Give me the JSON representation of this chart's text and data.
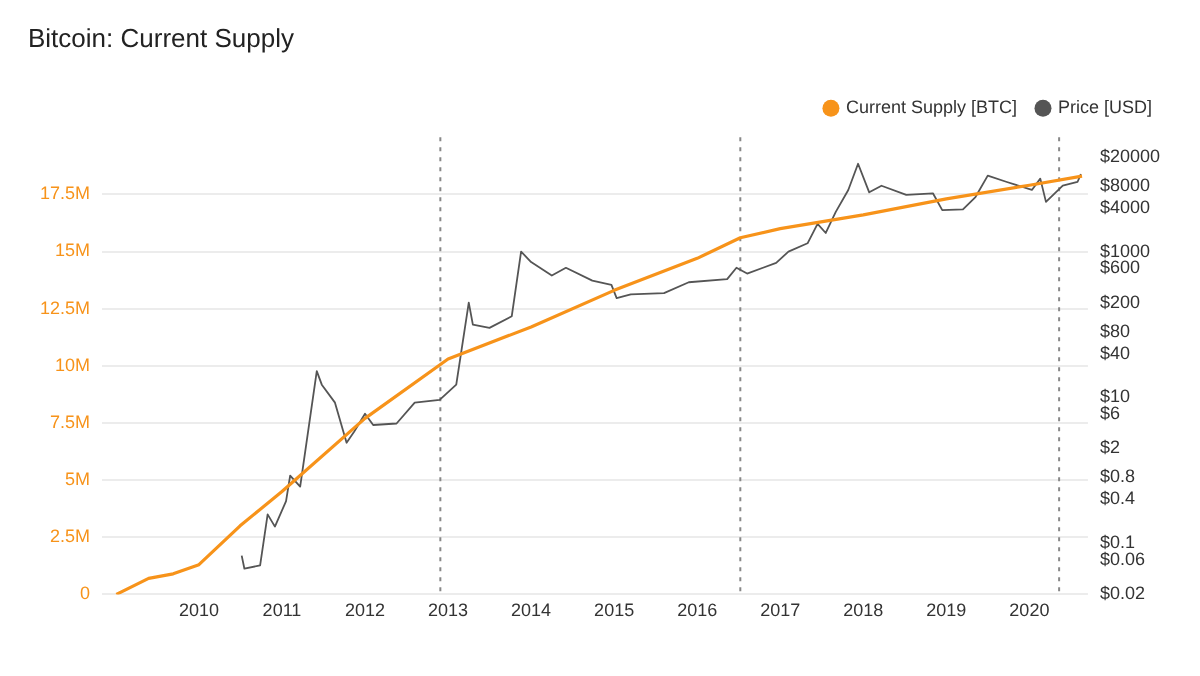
{
  "chart_data": {
    "type": "line",
    "title": "Bitcoin: Current Supply",
    "legend": "top right",
    "grid": "y",
    "log": "y2",
    "marker": "none",
    "xlim": [
      "2008-11-01",
      "2020-09-15"
    ],
    "xticks": [
      "2010",
      "2011",
      "2012",
      "2013",
      "2014",
      "2015",
      "2016",
      "2017",
      "2018",
      "2019",
      "2020"
    ],
    "ylim": [
      0,
      20000000
    ],
    "yticks": [
      0,
      {
        "value": 2500000,
        "label": "2.5M"
      },
      {
        "value": 5000000,
        "label": "5M"
      },
      {
        "value": 7500000,
        "label": "7.5M"
      },
      {
        "value": 10000000,
        "label": "10M"
      },
      {
        "value": 12500000,
        "label": "12.5M"
      },
      {
        "value": 15000000,
        "label": "15M"
      },
      {
        "value": 17500000,
        "label": "17.5M"
      }
    ],
    "y2lim": [
      0.02,
      37000
    ],
    "y2ticks": [
      {
        "value": 0.02,
        "label": "$0.02"
      },
      {
        "value": 0.06,
        "label": "$0.06"
      },
      {
        "value": 0.1,
        "label": "$0.1"
      },
      {
        "value": 0.4,
        "label": "$0.4"
      },
      {
        "value": 0.8,
        "label": "$0.8"
      },
      {
        "value": 2,
        "label": "$2"
      },
      {
        "value": 6,
        "label": "$6"
      },
      {
        "value": 10,
        "label": "$10"
      },
      {
        "value": 40,
        "label": "$40"
      },
      {
        "value": 80,
        "label": "$80"
      },
      {
        "value": 200,
        "label": "$200"
      },
      {
        "value": 600,
        "label": "$600"
      },
      {
        "value": 1000,
        "label": "$1000"
      },
      {
        "value": 4000,
        "label": "$4000"
      },
      {
        "value": 8000,
        "label": "$8000"
      },
      {
        "value": 20000,
        "label": "$20000"
      }
    ],
    "ref_lines": [
      {
        "axis": "x",
        "value": "2012-11-28",
        "color": "#888888",
        "line_style": "dotted"
      },
      {
        "axis": "x",
        "value": "2016-07-09",
        "color": "#888888",
        "line_style": "dotted"
      },
      {
        "axis": "x",
        "value": "2020-05-11",
        "color": "#888888",
        "line_style": "dotted"
      }
    ],
    "series": [
      {
        "name": "Current Supply [BTC]",
        "color": "#f7931a",
        "axis": "y",
        "x": [
          "2009-01-03",
          "2009-05-25",
          "2009-09-10",
          "2010-01-01",
          "2010-07-01",
          "2011-01-01",
          "2012-01-01",
          "2013-01-01",
          "2014-01-01",
          "2015-01-01",
          "2016-01-01",
          "2016-07-09",
          "2017-01-01",
          "2018-01-01",
          "2019-01-01",
          "2020-01-01",
          "2020-08-20"
        ],
        "values": [
          0,
          700000,
          900000,
          1300000,
          3000000,
          4500000,
          7700000,
          10300000,
          11700000,
          13300000,
          14700000,
          15600000,
          16000000,
          16600000,
          17300000,
          17900000,
          18300000
        ]
      },
      {
        "name": "Price [USD]",
        "color": "#555555",
        "axis": "y2",
        "x": [
          "2010-07-08",
          "2010-07-20",
          "2010-09-27",
          "2010-10-30",
          "2010-12-01",
          "2011-01-19",
          "2011-02-06",
          "2011-03-22",
          "2011-06-03",
          "2011-06-25",
          "2011-08-22",
          "2011-10-12",
          "2011-11-14",
          "2012-01-01",
          "2012-02-06",
          "2012-05-19",
          "2012-08-07",
          "2012-11-25",
          "2013-02-06",
          "2013-04-02",
          "2013-04-20",
          "2013-07-02",
          "2013-10-08",
          "2013-11-18",
          "2014-01-01",
          "2014-04-02",
          "2014-06-03",
          "2014-09-27",
          "2014-12-20",
          "2015-01-12",
          "2015-03-15",
          "2015-08-08",
          "2015-11-25",
          "2016-05-12",
          "2016-06-22",
          "2016-08-08",
          "2016-12-14",
          "2017-02-06",
          "2017-05-01",
          "2017-06-14",
          "2017-07-20",
          "2017-09-02",
          "2017-10-27",
          "2017-12-09",
          "2018-01-27",
          "2018-03-22",
          "2018-07-09",
          "2018-11-03",
          "2018-12-14",
          "2019-03-15",
          "2019-05-09",
          "2019-07-02",
          "2019-09-24",
          "2020-01-12",
          "2020-02-18",
          "2020-03-14",
          "2020-05-27",
          "2020-07-31",
          "2020-08-15"
        ],
        "values": [
          0.068,
          0.045,
          0.05,
          0.25,
          0.17,
          0.38,
          0.85,
          0.6,
          23,
          15,
          8.5,
          2.4,
          3.4,
          6,
          4.2,
          4.4,
          8.5,
          9.3,
          15,
          200,
          100,
          90,
          130,
          1000,
          720,
          470,
          600,
          400,
          350,
          230,
          260,
          270,
          380,
          420,
          600,
          500,
          700,
          1000,
          1300,
          2400,
          1800,
          3500,
          7000,
          16000,
          6500,
          8000,
          6000,
          6300,
          3700,
          3800,
          5600,
          11000,
          9000,
          7000,
          10000,
          4800,
          8000,
          9000,
          11500
        ]
      }
    ]
  }
}
